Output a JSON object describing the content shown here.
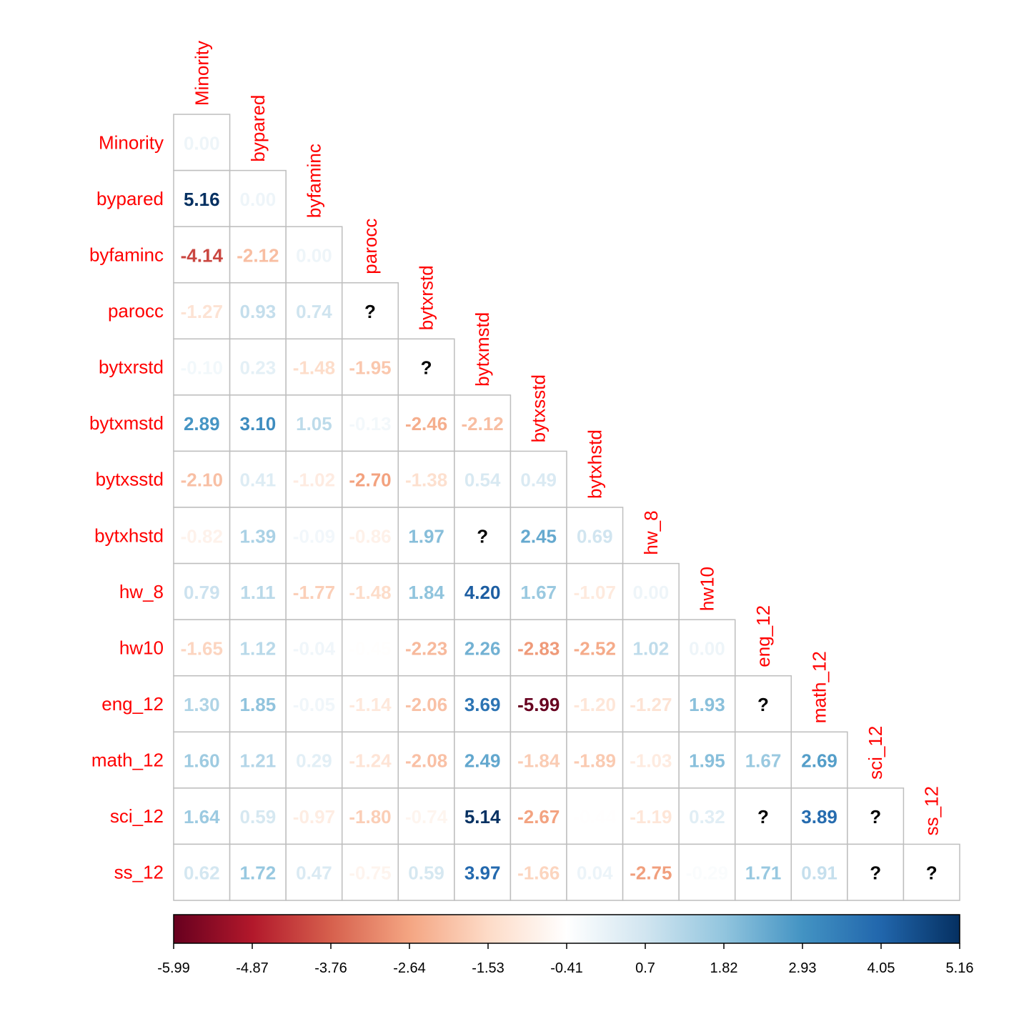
{
  "chart_data": {
    "type": "heatmap",
    "layout": "lower-triangle",
    "variables": [
      "Minority",
      "bypared",
      "byfaminc",
      "parocc",
      "bytxrstd",
      "bytxmstd",
      "bytxsstd",
      "bytxhstd",
      "hw_8",
      "hw10",
      "eng_12",
      "math_12",
      "sci_12",
      "ss_12"
    ],
    "matrix": [
      [
        0.0
      ],
      [
        5.16,
        0.0
      ],
      [
        -4.14,
        -2.12,
        0.0
      ],
      [
        -1.27,
        0.93,
        0.74,
        null
      ],
      [
        -0.1,
        0.23,
        -1.48,
        -1.95,
        null
      ],
      [
        2.89,
        3.1,
        1.05,
        -0.13,
        -2.46,
        -2.12
      ],
      [
        -2.1,
        0.41,
        -1.02,
        -2.7,
        -1.38,
        0.54,
        0.49
      ],
      [
        -0.82,
        1.39,
        -0.09,
        -0.86,
        1.97,
        null,
        2.45,
        0.69
      ],
      [
        0.79,
        1.11,
        -1.77,
        -1.48,
        1.84,
        4.2,
        1.67,
        -1.07,
        0.0
      ],
      [
        -1.65,
        1.12,
        -0.04,
        -0.45,
        -2.23,
        2.26,
        -2.83,
        -2.52,
        1.02,
        0.0
      ],
      [
        1.3,
        1.85,
        -0.05,
        -1.14,
        -2.06,
        3.69,
        -5.99,
        -1.2,
        -1.27,
        1.93,
        null
      ],
      [
        1.6,
        1.21,
        0.29,
        -1.24,
        -2.08,
        2.49,
        -1.84,
        -1.89,
        -1.03,
        1.95,
        1.67,
        2.69
      ],
      [
        1.64,
        0.59,
        -0.97,
        -1.8,
        -0.74,
        5.14,
        -2.67,
        -0.44,
        -1.19,
        0.32,
        null,
        3.89,
        null
      ],
      [
        0.62,
        1.72,
        0.47,
        -0.75,
        0.59,
        3.97,
        -1.66,
        0.04,
        -2.75,
        -0.29,
        1.71,
        0.91,
        null,
        null
      ]
    ],
    "na_label": "?",
    "color_range": [
      -5.99,
      5.16
    ],
    "colorbar_ticks": [
      "-5.99",
      "-4.87",
      "-3.76",
      "-2.64",
      "-1.53",
      "-0.41",
      "0.7",
      "1.82",
      "2.93",
      "4.05",
      "5.16"
    ],
    "colorbar_position": "bottom",
    "palette": [
      "#67001F",
      "#B2182B",
      "#D6604D",
      "#F4A582",
      "#FDDBC7",
      "#FFFFFF",
      "#D1E5F0",
      "#92C5DE",
      "#4393C3",
      "#2166AC",
      "#053061"
    ],
    "label_color": "#FF0000",
    "grid_color": "#BEBEBE"
  }
}
